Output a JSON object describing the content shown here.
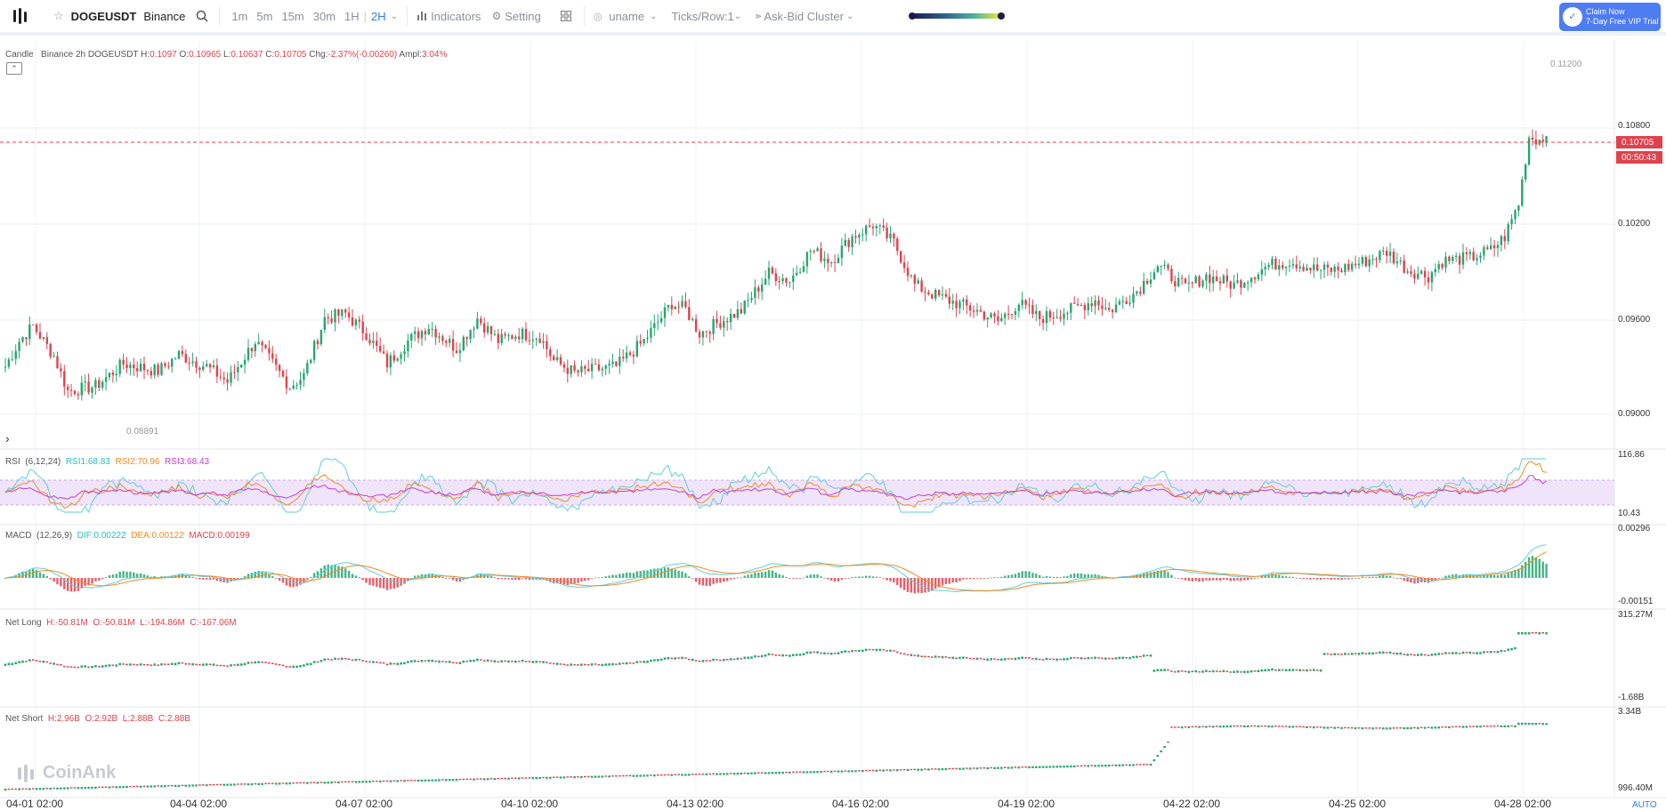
{
  "toolbar": {
    "symbol": "DOGEUSDT",
    "exchange": "Binance",
    "intervals": [
      "1m",
      "5m",
      "15m",
      "30m",
      "1H",
      "2H"
    ],
    "active_interval": "2H",
    "indicators_label": "Indicators",
    "setting_label": "Setting",
    "uname_label": "uname",
    "ticks_label": "Ticks/Row:1",
    "cluster_label": "Ask-Bid Cluster",
    "claim_line1": "Claim Now",
    "claim_line2": "7-Day Free VIP Trial"
  },
  "colors": {
    "up": "#26a671",
    "down": "#e0424d",
    "accent": "#2f7cf6",
    "rsi1": "#5fcfd6",
    "rsi2": "#f08a24",
    "rsi3": "#c03fd2",
    "dif": "#5fcfd6",
    "dea": "#f08a24"
  },
  "main_legend": {
    "label": "Candle",
    "desc": "Binance 2h DOGEUSDT",
    "h_label": "H:",
    "h": "0.1097",
    "o_label": "O:",
    "o": "0.10965",
    "l_label": "L:",
    "l": "0.10637",
    "c_label": "C:",
    "c": "0.10705",
    "chg_label": "Chg:",
    "chg": "-2.37%(-0.00260)",
    "ampl_label": "Ampl:",
    "ampl": "3.04%"
  },
  "rsi_legend": {
    "name": "RSI",
    "params": "(6,12,24)",
    "rsi1": "RSI1:68.83",
    "rsi2": "RSI2:70.96",
    "rsi3": "RSI3:68.43"
  },
  "macd_legend": {
    "name": "MACD",
    "params": "(12,26,9)",
    "dif": "DIF:0.00222",
    "dea": "DEA:0.00122",
    "macd": "MACD:0.00199"
  },
  "netlong_legend": {
    "name": "Net Long",
    "h": "H:-50.81M",
    "o": "O:-50.81M",
    "l": "L:-194.86M",
    "c": "C:-167.06M"
  },
  "netshort_legend": {
    "name": "Net Short",
    "h": "H:2.96B",
    "o": "O:2.92B",
    "l": "L:2.88B",
    "c": "C:2.88B"
  },
  "watermark": "CoinAnk",
  "axis_labels": {
    "main_ticks": [
      "0.10800",
      "0.10200",
      "0.09600",
      "0.09000"
    ],
    "price_tag": "0.10705",
    "countdown": "00:50:43",
    "high_marker": "0.11200",
    "low_marker": "0.08891",
    "rsi_top": "116.86",
    "rsi_bottom": "10.43",
    "macd_top": "0.00296",
    "macd_bottom": "-0.00151",
    "nl_top": "315.27M",
    "nl_bottom": "-1.68B",
    "ns_top": "3.34B",
    "ns_bottom": "996.40M",
    "auto": "AUTO"
  },
  "chart_data": {
    "type": "candlestick",
    "x_ticks": [
      "04-01 02:00",
      "04-04 02:00",
      "04-07 02:00",
      "04-10 02:00",
      "04-13 02:00",
      "04-16 02:00",
      "04-19 02:00",
      "04-22 02:00",
      "04-25 02:00",
      "04-28 02:00"
    ],
    "price_range": [
      0.087,
      0.113
    ],
    "current_price": 0.10705,
    "high": 0.112,
    "low": 0.08891,
    "close_anchors": [
      [
        0,
        0.0918
      ],
      [
        4,
        0.0935
      ],
      [
        8,
        0.0945
      ],
      [
        14,
        0.0925
      ],
      [
        18,
        0.0902
      ],
      [
        26,
        0.0905
      ],
      [
        34,
        0.092
      ],
      [
        44,
        0.0915
      ],
      [
        50,
        0.0926
      ],
      [
        58,
        0.0918
      ],
      [
        64,
        0.0908
      ],
      [
        72,
        0.0935
      ],
      [
        82,
        0.0905
      ],
      [
        86,
        0.0912
      ],
      [
        92,
        0.095
      ],
      [
        98,
        0.0953
      ],
      [
        104,
        0.094
      ],
      [
        110,
        0.092
      ],
      [
        116,
        0.0935
      ],
      [
        122,
        0.0945
      ],
      [
        130,
        0.093
      ],
      [
        136,
        0.095
      ],
      [
        142,
        0.0935
      ],
      [
        148,
        0.094
      ],
      [
        154,
        0.0938
      ],
      [
        158,
        0.0922
      ],
      [
        164,
        0.0914
      ],
      [
        176,
        0.0918
      ],
      [
        184,
        0.0935
      ],
      [
        192,
        0.096
      ],
      [
        196,
        0.0956
      ],
      [
        200,
        0.094
      ],
      [
        206,
        0.0948
      ],
      [
        212,
        0.0955
      ],
      [
        220,
        0.098
      ],
      [
        226,
        0.0975
      ],
      [
        232,
        0.0995
      ],
      [
        238,
        0.0988
      ],
      [
        244,
        0.1004
      ],
      [
        250,
        0.1012
      ],
      [
        256,
        0.1
      ],
      [
        262,
        0.0972
      ],
      [
        268,
        0.0965
      ],
      [
        274,
        0.096
      ],
      [
        280,
        0.0955
      ],
      [
        286,
        0.0948
      ],
      [
        292,
        0.096
      ],
      [
        298,
        0.095
      ],
      [
        306,
        0.0955
      ],
      [
        314,
        0.0962
      ],
      [
        318,
        0.0955
      ],
      [
        326,
        0.0968
      ],
      [
        332,
        0.0985
      ],
      [
        340,
        0.097
      ],
      [
        346,
        0.0978
      ],
      [
        354,
        0.0972
      ],
      [
        364,
        0.0985
      ],
      [
        370,
        0.0988
      ],
      [
        378,
        0.0982
      ],
      [
        384,
        0.0982
      ],
      [
        392,
        0.0988
      ],
      [
        398,
        0.0994
      ],
      [
        404,
        0.0982
      ],
      [
        410,
        0.0978
      ],
      [
        414,
        0.0988
      ],
      [
        422,
        0.099
      ],
      [
        428,
        0.0995
      ],
      [
        432,
        0.1004
      ],
      [
        436,
        0.1026
      ],
      [
        439,
        0.107
      ],
      [
        442,
        0.1068
      ],
      [
        444,
        0.107
      ]
    ],
    "rsi": {
      "series": [
        "RSI1",
        "RSI2",
        "RSI3"
      ],
      "last": [
        68.83,
        70.96,
        68.43
      ],
      "range": [
        10.43,
        116.86
      ]
    },
    "macd": {
      "last": {
        "dif": 0.00222,
        "dea": 0.00122,
        "macd": 0.00199
      },
      "range": [
        -0.00151,
        0.00296
      ]
    },
    "net_long": {
      "last": {
        "h": "-50.81M",
        "o": "-50.81M",
        "l": "-194.86M",
        "c": "-167.06M"
      },
      "range": [
        "-1.68B",
        "315.27M"
      ]
    },
    "net_short": {
      "last": {
        "h": "2.96B",
        "o": "2.92B",
        "l": "2.88B",
        "c": "2.88B"
      },
      "range": [
        "996.40M",
        "3.34B"
      ]
    }
  }
}
